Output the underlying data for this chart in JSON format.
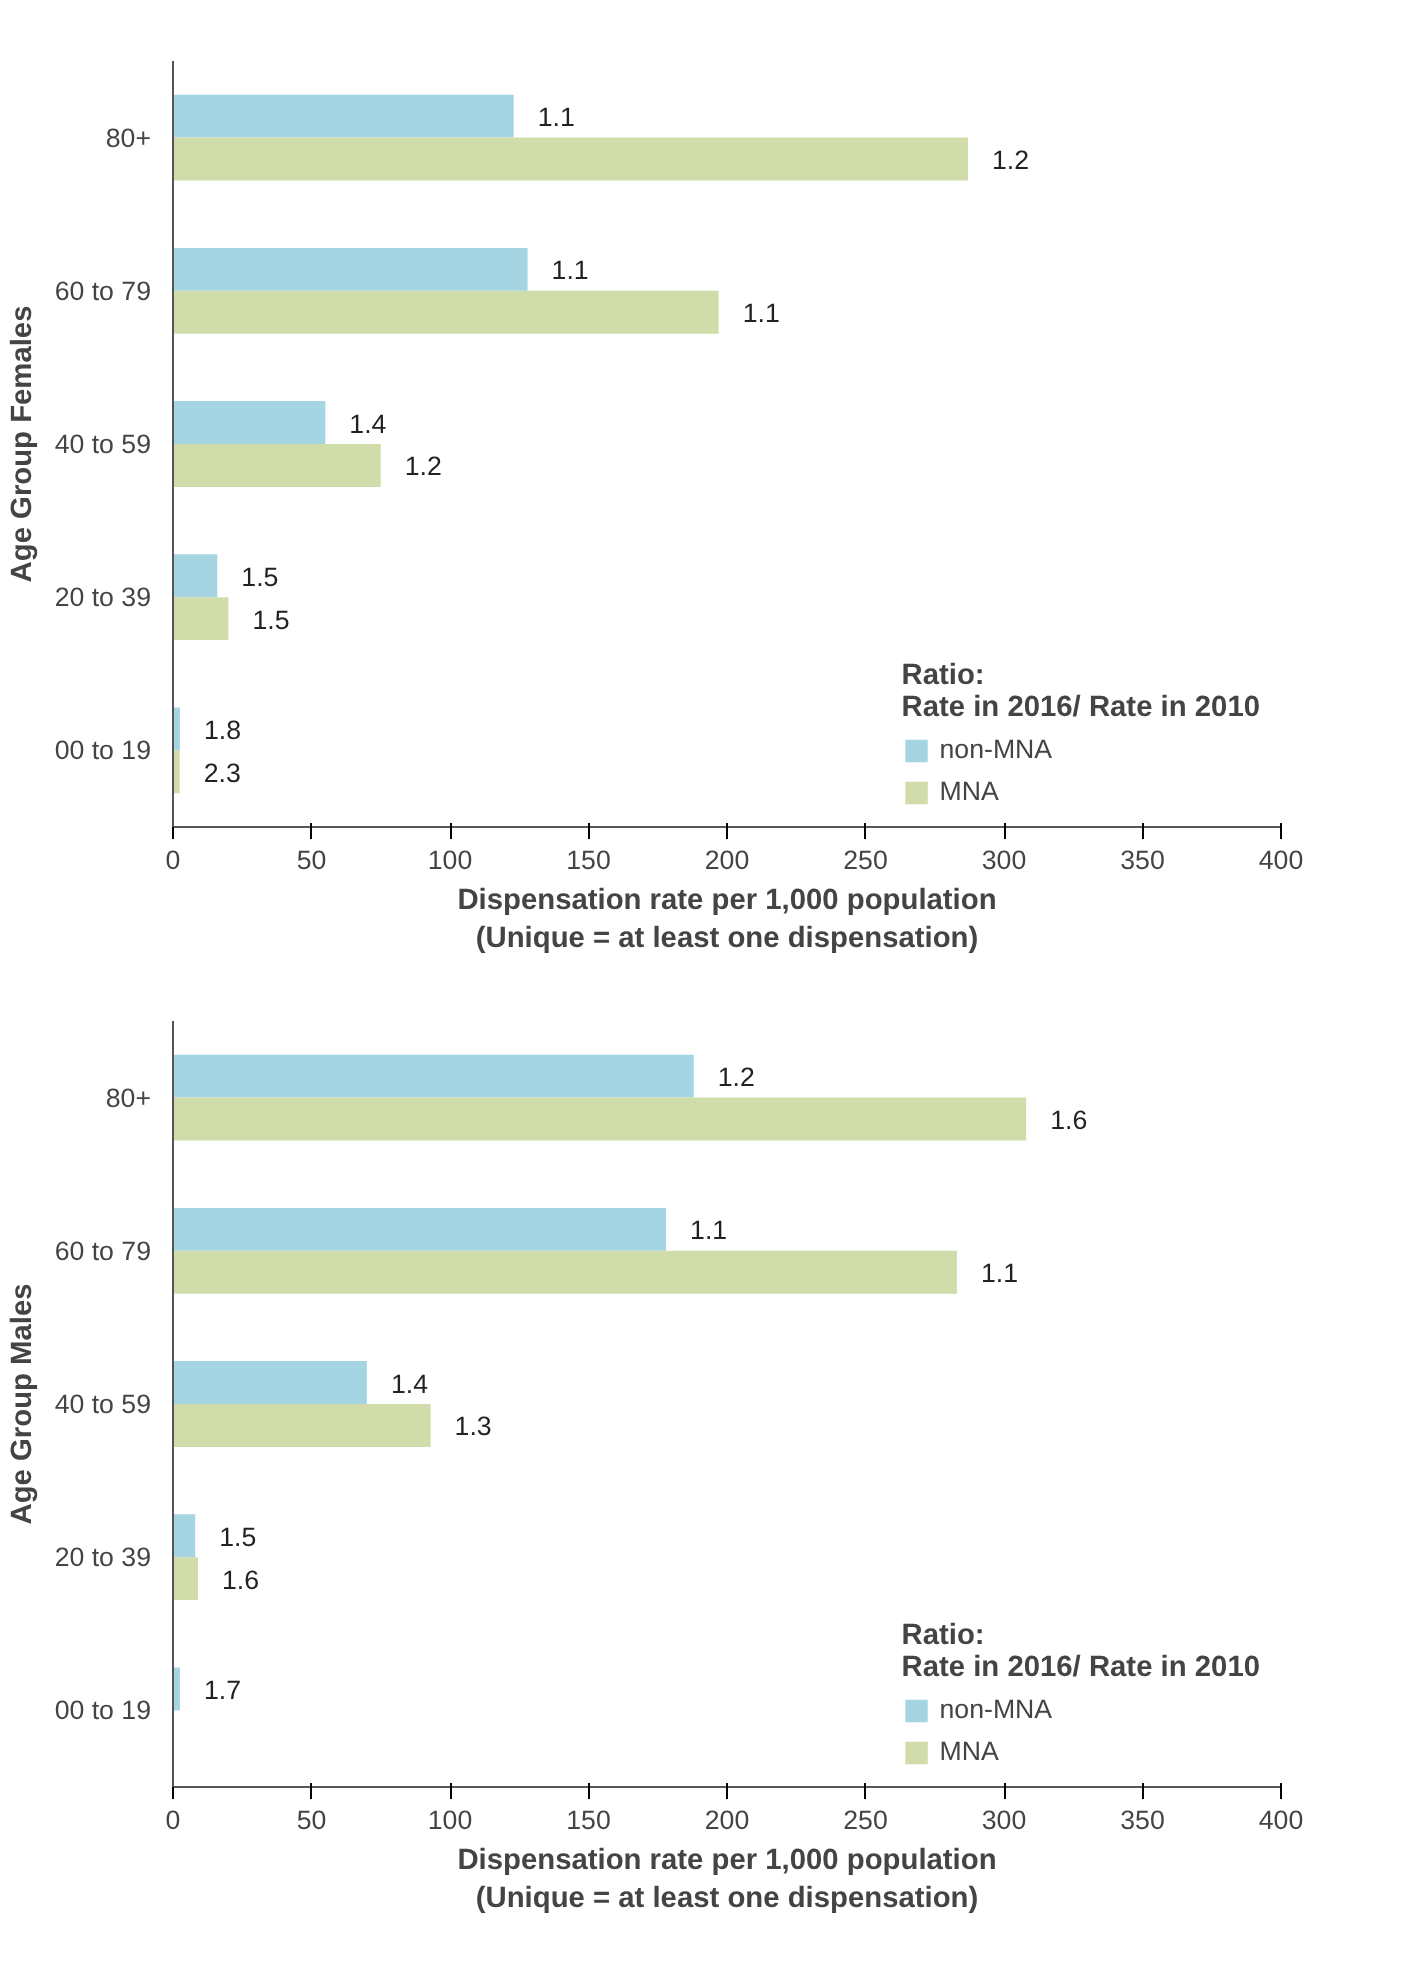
{
  "chart_data": [
    {
      "type": "bar",
      "orientation": "horizontal",
      "ylabel": "Age Group Females",
      "xlabel": "Dispensation rate per 1,000 population\n(Unique = at least one dispensation)",
      "legend_title": "Ratio:\nRate in 2016/ Rate in 2010",
      "legend": "bottom right",
      "categories": [
        "80+",
        "60 to 79",
        "40 to 59",
        "20 to 39",
        "00 to 19"
      ],
      "series": [
        {
          "name": "non-MNA",
          "color": "#a5d5e2",
          "values": [
            123,
            128,
            55,
            16,
            2.5
          ]
        },
        {
          "name": "MNA",
          "color": "#d0dca9",
          "values": [
            287,
            197,
            75,
            20,
            2.4
          ]
        }
      ],
      "annotations": [
        {
          "text": "1.1",
          "x": 123,
          "y": "80+"
        },
        {
          "text": "1.2",
          "x": 287,
          "y": "80+"
        },
        {
          "text": "1.1",
          "x": 128,
          "y": "60 to 79"
        },
        {
          "text": "1.1",
          "x": 197,
          "y": "60 to 79"
        },
        {
          "text": "1.4",
          "x": 55,
          "y": "40 to 59"
        },
        {
          "text": "1.2",
          "x": 75,
          "y": "40 to 59"
        },
        {
          "text": "1.5",
          "x": 16,
          "y": "20 to 39"
        },
        {
          "text": "1.5",
          "x": 20,
          "y": "20 to 39"
        },
        {
          "text": "1.8",
          "x": 2.5,
          "y": "00 to 19"
        },
        {
          "text": "2.3",
          "x": 2.4,
          "y": "00 to 19"
        }
      ],
      "xlim": [
        0,
        400
      ],
      "xticks": [
        0,
        50,
        100,
        150,
        200,
        250,
        300,
        350,
        400
      ]
    },
    {
      "type": "bar",
      "orientation": "horizontal",
      "ylabel": "Age Group Males",
      "xlabel": "Dispensation rate per 1,000 population\n(Unique = at least one dispensation)",
      "legend_title": "Ratio:\nRate in 2016/ Rate in 2010",
      "legend": "bottom right",
      "categories": [
        "80+",
        "60 to 79",
        "40 to 59",
        "20 to 39",
        "00 to 19"
      ],
      "series": [
        {
          "name": "non-MNA",
          "color": "#a5d5e2",
          "values": [
            188,
            178,
            70,
            8,
            2.5
          ]
        },
        {
          "name": "MNA",
          "color": "#d0dca9",
          "values": [
            308,
            283,
            93,
            9,
            null
          ]
        }
      ],
      "annotations": [
        {
          "text": "1.2",
          "x": 188,
          "y": "80+"
        },
        {
          "text": "1.6",
          "x": 308,
          "y": "80+"
        },
        {
          "text": "1.1",
          "x": 178,
          "y": "60 to 79"
        },
        {
          "text": "1.1",
          "x": 283,
          "y": "60 to 79"
        },
        {
          "text": "1.4",
          "x": 70,
          "y": "40 to 59"
        },
        {
          "text": "1.3",
          "x": 93,
          "y": "40 to 59"
        },
        {
          "text": "1.5",
          "x": 8,
          "y": "20 to 39"
        },
        {
          "text": "1.6",
          "x": 9,
          "y": "20 to 39"
        },
        {
          "text": "1.7",
          "x": 2.5,
          "y": "00 to 19"
        }
      ],
      "xlim": [
        0,
        400
      ],
      "xticks": [
        0,
        50,
        100,
        150,
        200,
        250,
        300,
        350,
        400
      ]
    }
  ]
}
